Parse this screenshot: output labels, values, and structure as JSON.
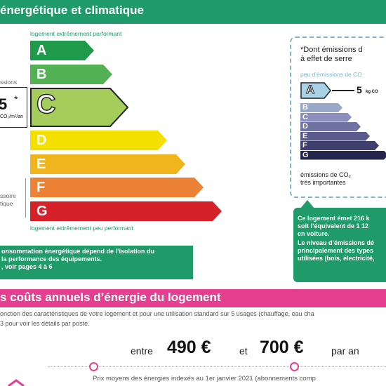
{
  "header_energy": {
    "title": "énergétique et climatique"
  },
  "energy_label": {
    "top_note": "logement extrêmement performant",
    "bottom_note": "logement extrêmement peu performant",
    "classes": [
      {
        "letter": "A",
        "color": "#1f9a4a"
      },
      {
        "letter": "B",
        "color": "#52b153"
      },
      {
        "letter": "C",
        "color": "#a4cd5b"
      },
      {
        "letter": "D",
        "color": "#f4e000"
      },
      {
        "letter": "E",
        "color": "#f0b41c"
      },
      {
        "letter": "F",
        "color": "#eb8236"
      },
      {
        "letter": "G",
        "color": "#d62128"
      }
    ],
    "current_class": "C",
    "current_value": "5",
    "current_star": "*",
    "current_unit": "CO₂/m²/an",
    "left_label_1": "ssions",
    "left_label_2": "ssoire",
    "left_label_3": "tique"
  },
  "ghg_panel": {
    "title_line1": "*Dont émissions d",
    "title_line2": "à effet de serre",
    "subtitle": "peu d’émissions de CO",
    "current_class": "A",
    "current_value": "5",
    "current_unit": "kg CO",
    "bottom_line1": "émissions de CO₂",
    "bottom_line2": "très importantes",
    "classes": [
      {
        "letter": "A",
        "color": "#a9d2e6"
      },
      {
        "letter": "B",
        "color": "#9aa8c8"
      },
      {
        "letter": "C",
        "color": "#8a8fbc"
      },
      {
        "letter": "D",
        "color": "#6f73a4"
      },
      {
        "letter": "E",
        "color": "#5a5b8c"
      },
      {
        "letter": "F",
        "color": "#3f3f6f"
      },
      {
        "letter": "G",
        "color": "#26264d"
      }
    ]
  },
  "info_left": {
    "line1": "onsommation énergétique dépend de l’isolation du",
    "line2": "la performance des équipements.",
    "line3": ", voir pages 4 à 6"
  },
  "info_right": {
    "line1": "Ce logement émet 216 k",
    "line2": "soit l’équivalent de 1 12",
    "line3": "en voiture.",
    "line4": "Le niveau d’émissions dé",
    "line5": "principalement des types",
    "line6": "utilisées (bois, électricité,"
  },
  "header_costs": {
    "title": "s coûts annuels d’énergie du logement"
  },
  "costs": {
    "desc_line1": "onction des caractéristiques de votre logement et pour une utilisation standard sur 5 usages (chauffage, eau cha",
    "desc_line2": "3 pour voir les détails par poste.",
    "prefix": "entre",
    "low": "490 €",
    "conj": "et",
    "high": "700 €",
    "suffix": "par an",
    "footnote": "Prix moyens des énergies indexés au  1er janvier 2021 (abonnements comp"
  }
}
